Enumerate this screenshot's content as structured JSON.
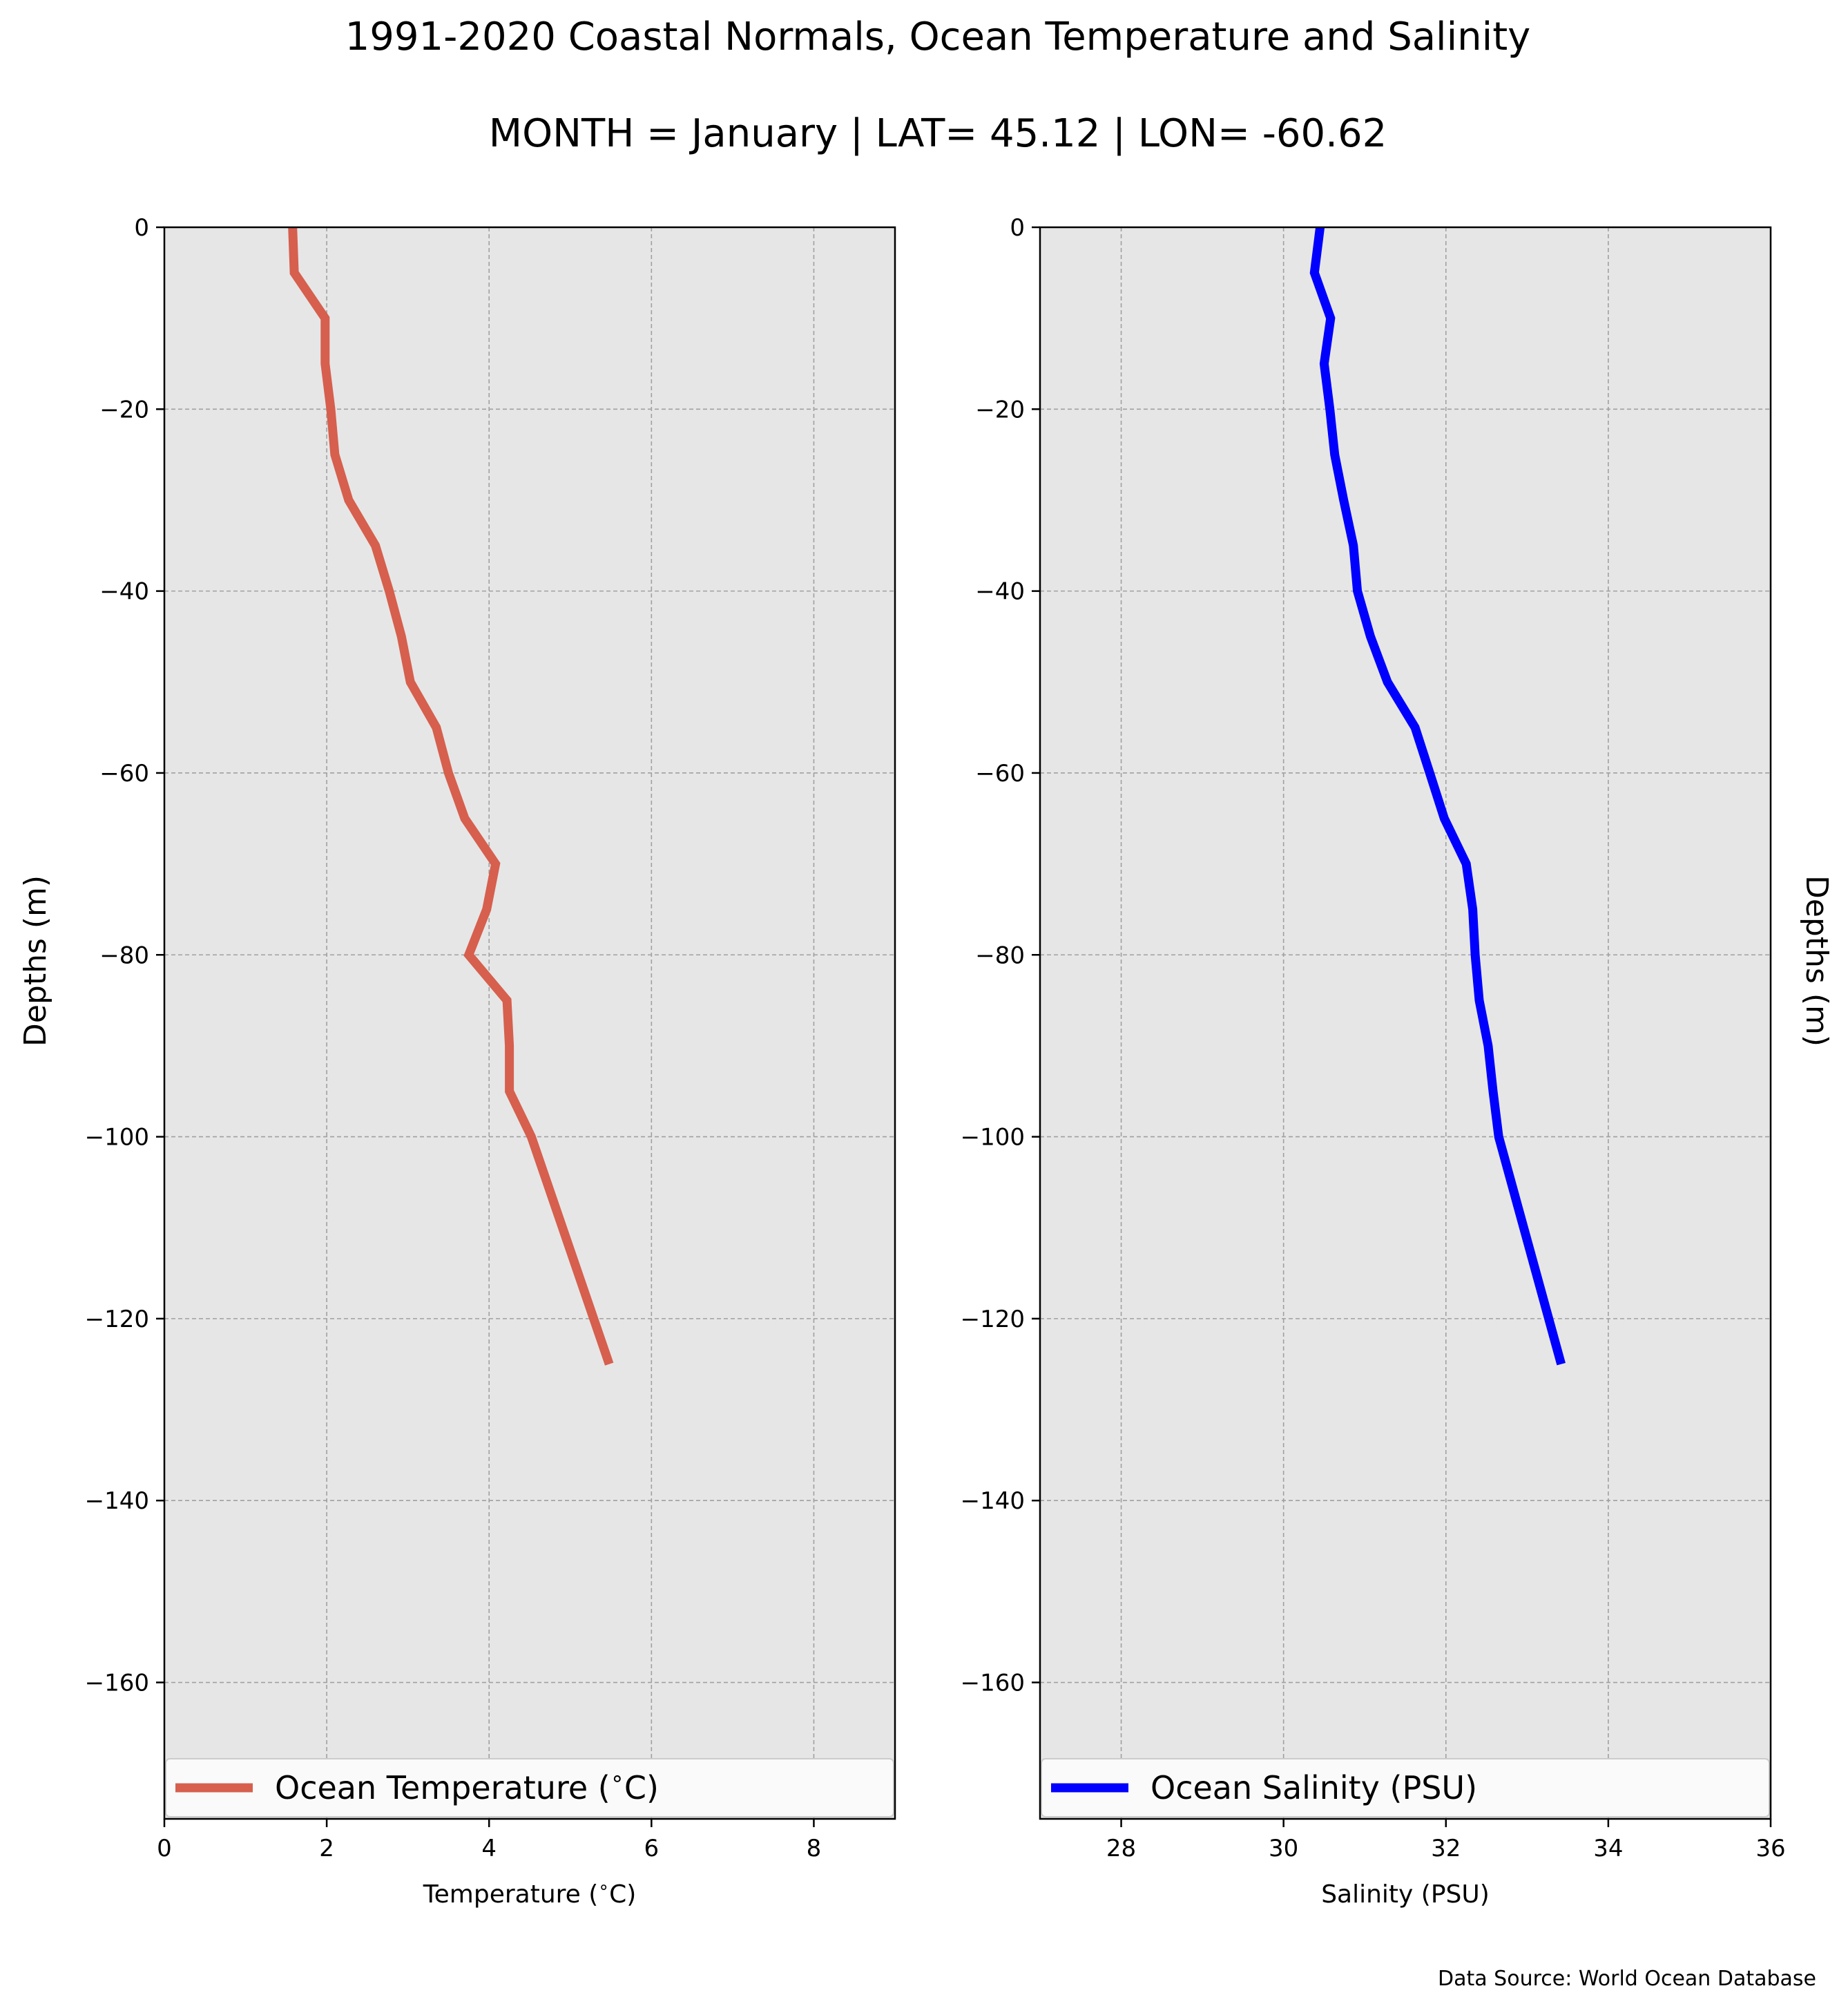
{
  "title": "1991-2020 Coastal Normals, Ocean Temperature and Salinity",
  "subtitle": "MONTH = January | LAT= 45.12 | LON= -60.62",
  "source_note": "Data Source: World Ocean Database",
  "colors": {
    "panel_background": "#e6e6e6",
    "grid": "#a0a0a0",
    "temperature_line": "#d65f4e",
    "salinity_line": "#0000ff"
  },
  "chart_data": [
    {
      "type": "line",
      "xlabel": "Temperature ($^\\circ$C)",
      "ylabel": "Depths (m)",
      "ylabel_side": "left",
      "xlim": [
        0,
        9
      ],
      "ylim": [
        -175,
        0
      ],
      "xticks": [
        0,
        2,
        4,
        6,
        8
      ],
      "xtick_labels": [
        "0",
        "2",
        "4",
        "6",
        "8"
      ],
      "yticks": [
        0,
        -20,
        -40,
        -60,
        -80,
        -100,
        -120,
        -140,
        -160
      ],
      "ytick_labels": [
        "0",
        "−20",
        "−40",
        "−60",
        "−80",
        "−100",
        "−120",
        "−140",
        "−160"
      ],
      "grid": true,
      "legend": "bottom",
      "series": [
        {
          "name": "Ocean Temperature ($^\\circ$C)",
          "color": "#d65f4e",
          "x": [
            1.58,
            1.6,
            1.98,
            1.98,
            2.05,
            2.1,
            2.27,
            2.6,
            2.77,
            2.92,
            3.03,
            3.35,
            3.5,
            3.7,
            4.08,
            3.97,
            3.75,
            4.22,
            4.25,
            4.25,
            4.52,
            5.48
          ],
          "y": [
            0,
            -5,
            -10,
            -15,
            -20,
            -25,
            -30,
            -35,
            -40,
            -45,
            -50,
            -55,
            -60,
            -65,
            -70,
            -75,
            -80,
            -85,
            -90,
            -95,
            -100,
            -125
          ]
        }
      ]
    },
    {
      "type": "line",
      "xlabel": "Salinity (PSU)",
      "ylabel": "Depths (m)",
      "ylabel_side": "right",
      "xlim": [
        27,
        36
      ],
      "ylim": [
        -175,
        0
      ],
      "xticks": [
        28,
        30,
        32,
        34,
        36
      ],
      "xtick_labels": [
        "28",
        "30",
        "32",
        "34",
        "36"
      ],
      "yticks": [
        0,
        -20,
        -40,
        -60,
        -80,
        -100,
        -120,
        -140,
        -160
      ],
      "ytick_labels": [
        "0",
        "−20",
        "−40",
        "−60",
        "−80",
        "−100",
        "−120",
        "−140",
        "−160"
      ],
      "grid": true,
      "legend": "bottom",
      "series": [
        {
          "name": "Ocean Salinity (PSU)",
          "color": "#0000ff",
          "x": [
            30.45,
            30.38,
            30.58,
            30.5,
            30.57,
            30.63,
            30.74,
            30.86,
            30.91,
            31.07,
            31.28,
            31.62,
            31.8,
            31.98,
            32.25,
            32.33,
            32.36,
            32.41,
            32.52,
            32.58,
            32.65,
            33.42
          ],
          "y": [
            0,
            -5,
            -10,
            -15,
            -20,
            -25,
            -30,
            -35,
            -40,
            -45,
            -50,
            -55,
            -60,
            -65,
            -70,
            -75,
            -80,
            -85,
            -90,
            -95,
            -100,
            -125
          ]
        }
      ]
    }
  ]
}
